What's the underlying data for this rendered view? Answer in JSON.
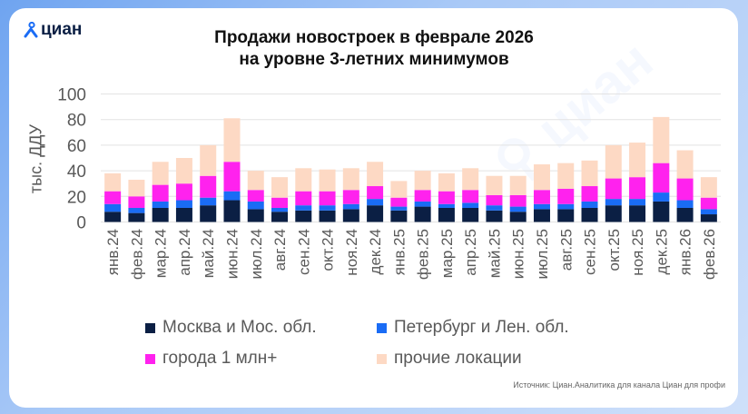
{
  "logo": {
    "text": "циан"
  },
  "chart_data": {
    "type": "bar",
    "stacked": true,
    "title": "Продажи новостроек в феврале 2026\nна уровне 3-летних минимумов",
    "title_lines": [
      "Продажи новостроек в феврале 2026",
      "на уровне 3-летних минимумов"
    ],
    "ylabel": "тыс. ДДУ",
    "ylim": [
      0,
      100
    ],
    "yticks": [
      0,
      20,
      40,
      60,
      80,
      100
    ],
    "grid": true,
    "legend_position": "bottom",
    "categories": [
      "янв.24",
      "фев.24",
      "мар.24",
      "апр.24",
      "май.24",
      "июн.24",
      "июл.24",
      "авг.24",
      "сен.24",
      "окт.24",
      "ноя.24",
      "дек.24",
      "янв.25",
      "фев.25",
      "мар.25",
      "апр.25",
      "май.25",
      "июн.25",
      "июл.25",
      "авг.25",
      "сен.25",
      "окт.25",
      "ноя.25",
      "дек.25",
      "янв.26",
      "фев.26"
    ],
    "series": [
      {
        "name": "Москва и Мос. обл.",
        "color": "#0b1f44",
        "values": [
          8,
          7,
          11,
          11,
          13,
          17,
          10,
          8,
          9,
          9,
          10,
          13,
          9,
          12,
          11,
          11,
          9,
          8,
          10,
          10,
          11,
          13,
          13,
          16,
          11,
          6
        ]
      },
      {
        "name": "Петербург и Лен. обл.",
        "color": "#1a6cf5",
        "values": [
          6,
          4,
          5,
          6,
          6,
          7,
          6,
          3,
          4,
          4,
          4,
          5,
          3,
          4,
          3,
          4,
          4,
          4,
          4,
          4,
          5,
          5,
          5,
          7,
          6,
          4
        ]
      },
      {
        "name": "города 1 млн+",
        "color": "#ff22ee",
        "values": [
          10,
          9,
          13,
          13,
          17,
          23,
          9,
          8,
          11,
          11,
          11,
          10,
          7,
          9,
          10,
          10,
          8,
          9,
          11,
          12,
          12,
          16,
          17,
          23,
          17,
          9
        ]
      },
      {
        "name": "прочие локации",
        "color": "#fdd9c4",
        "values": [
          14,
          13,
          18,
          20,
          24,
          34,
          15,
          16,
          18,
          17,
          17,
          19,
          13,
          15,
          14,
          17,
          15,
          15,
          20,
          20,
          20,
          26,
          27,
          36,
          22,
          16
        ]
      }
    ]
  },
  "source": "Источник: Циан.Аналитика для канала Циан для профи"
}
